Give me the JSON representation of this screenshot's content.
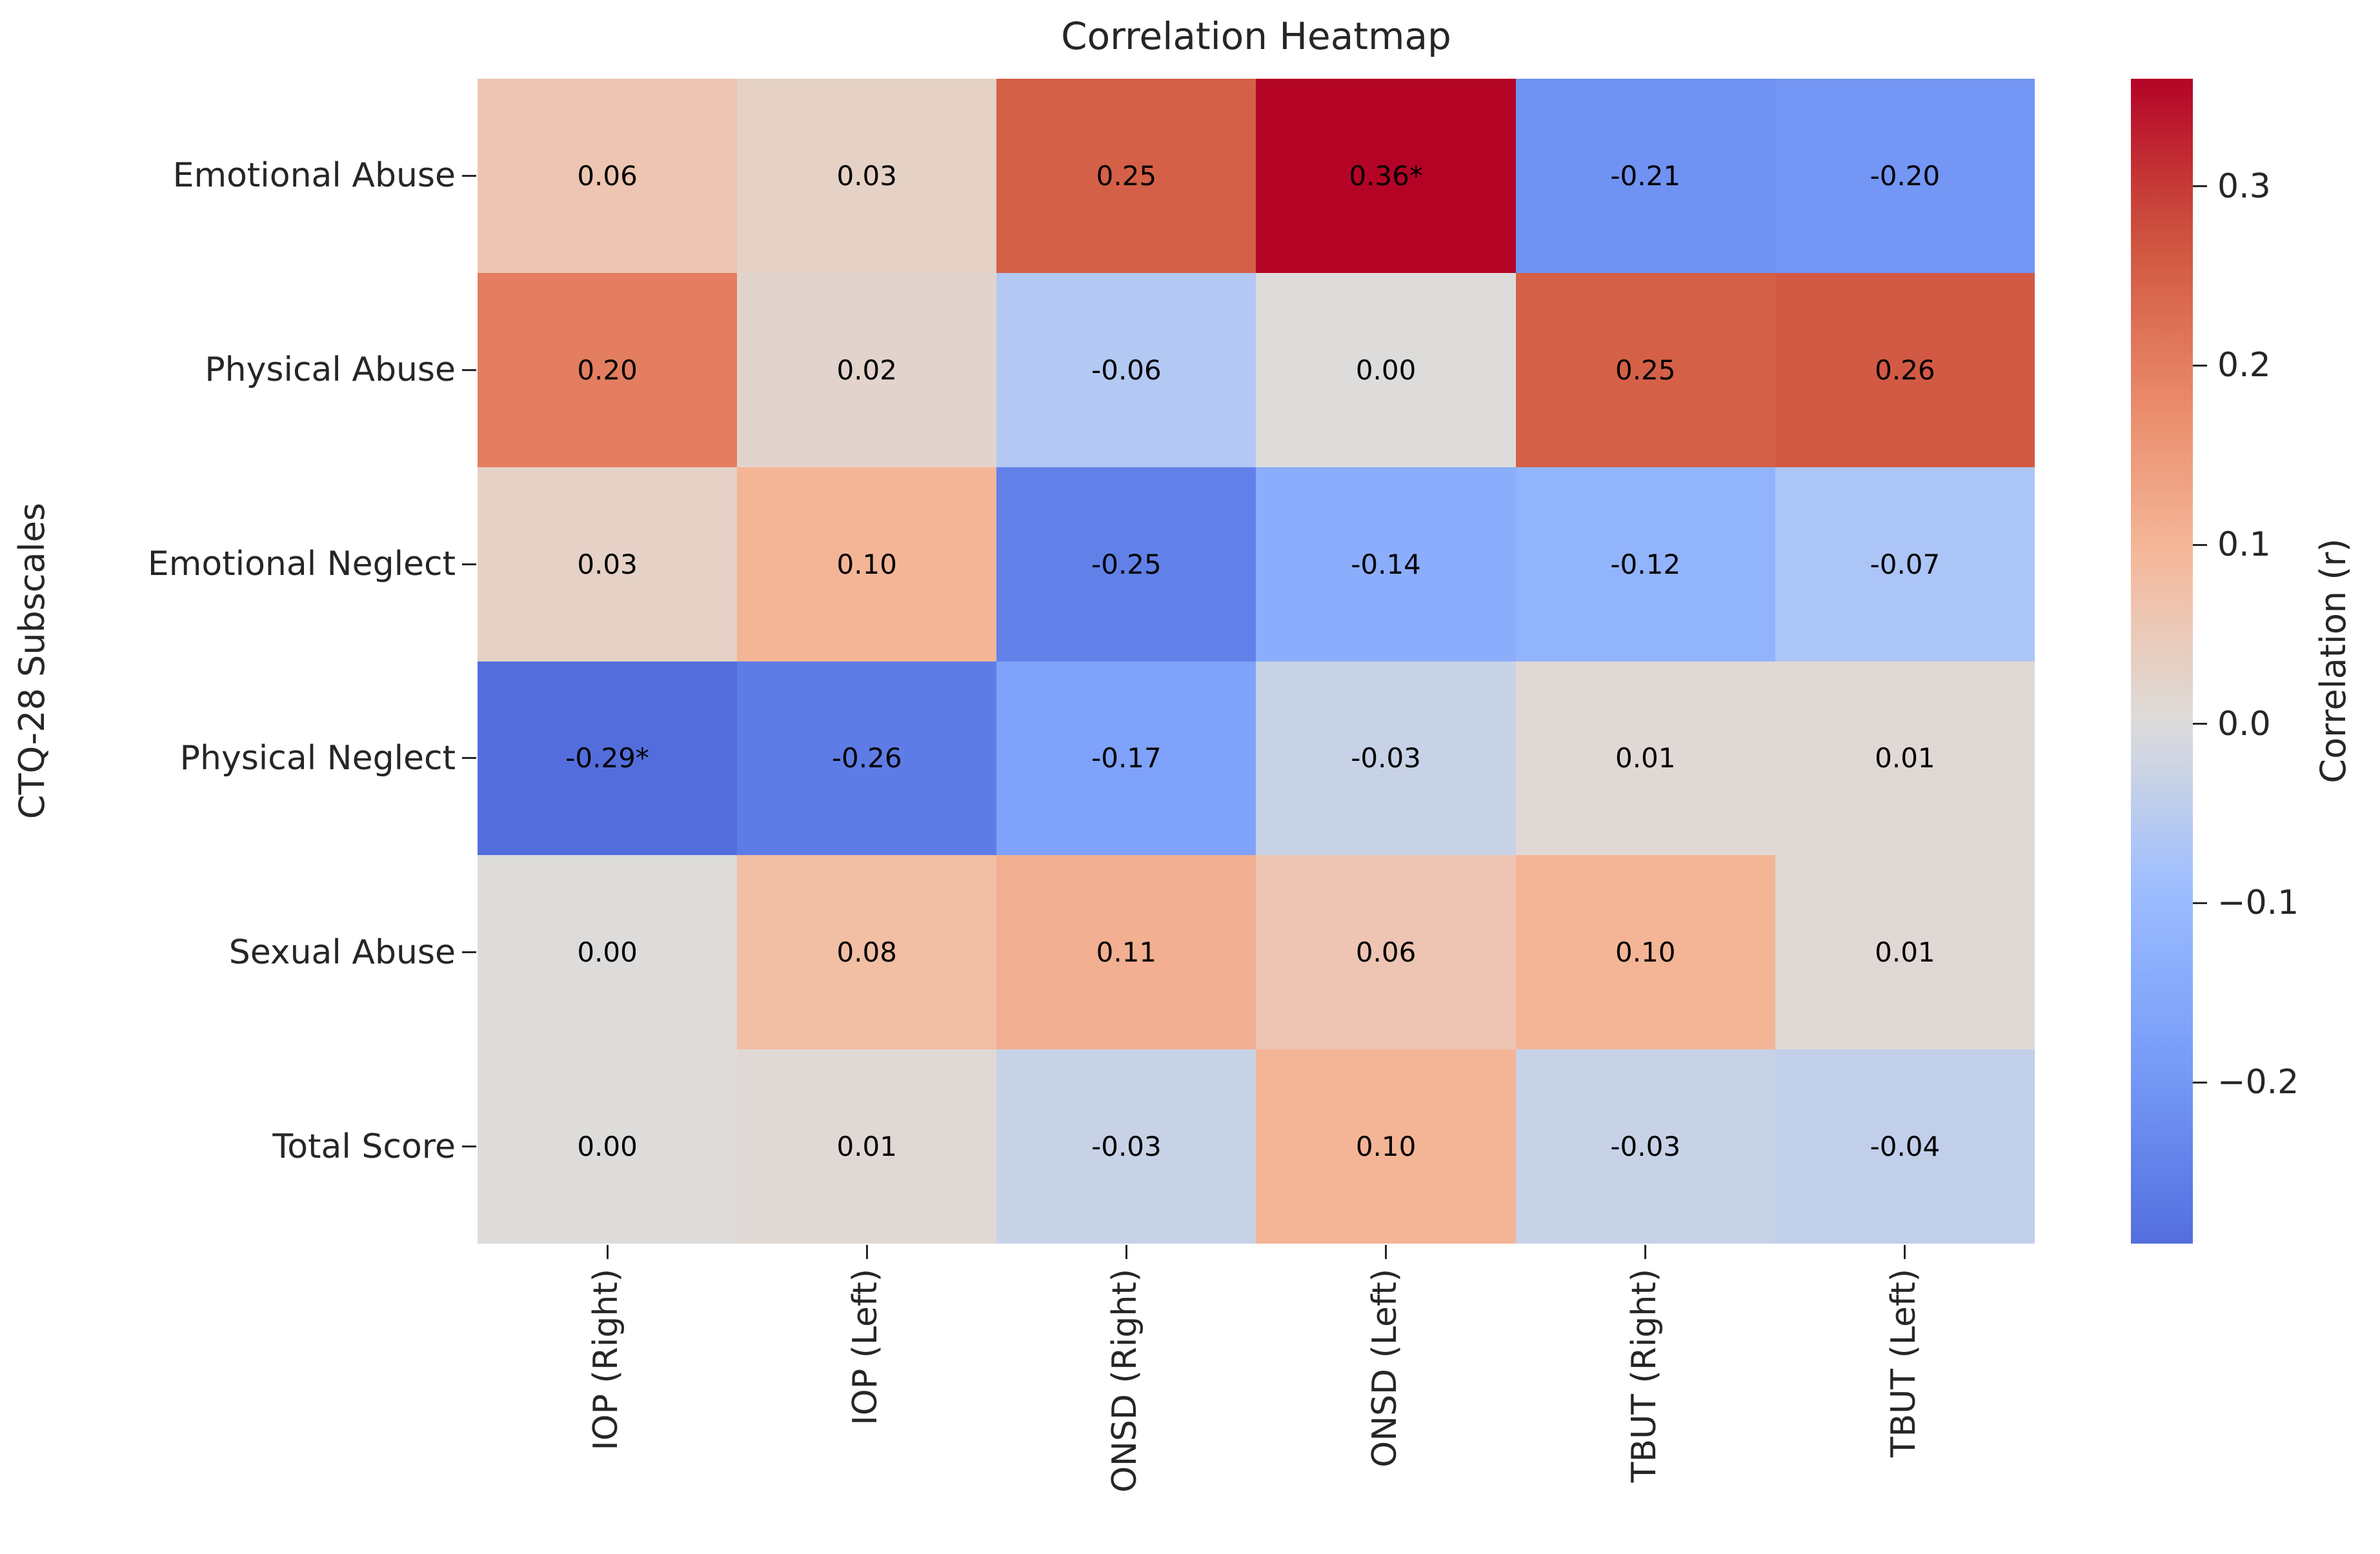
{
  "chart_data": {
    "type": "heatmap",
    "title": "Correlation Heatmap",
    "ylabel": "CTQ-28 Subscales",
    "xlabel": "",
    "colorbar_label": "Correlation (r)",
    "colormap": "coolwarm",
    "color_norm": {
      "vmin": -0.36,
      "vmax": 0.36,
      "center": 0
    },
    "colorbar_range": {
      "top": 0.36,
      "bottom": -0.29
    },
    "colorbar_ticks": [
      {
        "label": "0.3",
        "value": 0.3
      },
      {
        "label": "0.2",
        "value": 0.2
      },
      {
        "label": "0.1",
        "value": 0.1
      },
      {
        "label": "0.0",
        "value": 0.0
      },
      {
        "label": "−0.1",
        "value": -0.1
      },
      {
        "label": "−0.2",
        "value": -0.2
      }
    ],
    "columns": [
      "IOP (Right)",
      "IOP (Left)",
      "ONSD (Right)",
      "ONSD (Left)",
      "TBUT (Right)",
      "TBUT (Left)"
    ],
    "rows": [
      "Emotional Abuse",
      "Physical Abuse",
      "Emotional Neglect",
      "Physical Neglect",
      "Sexual Abuse",
      "Total Score"
    ],
    "cells": [
      [
        "0.06",
        "0.03",
        "0.25",
        "0.36*",
        "-0.21",
        "-0.20"
      ],
      [
        "0.20",
        "0.02",
        "-0.06",
        "0.00",
        "0.25",
        "0.26"
      ],
      [
        "0.03",
        "0.10",
        "-0.25",
        "-0.14",
        "-0.12",
        "-0.07"
      ],
      [
        "-0.29*",
        "-0.26",
        "-0.17",
        "-0.03",
        "0.01",
        "0.01"
      ],
      [
        "0.00",
        "0.08",
        "0.11",
        "0.06",
        "0.10",
        "0.01"
      ],
      [
        "0.00",
        "0.01",
        "-0.03",
        "0.10",
        "-0.03",
        "-0.04"
      ]
    ],
    "significance_note": "* markers appear directly in cell text",
    "legend_position": "right-colorbar",
    "grid": false
  },
  "colors": {
    "background": "#ffffff",
    "label_text": "#262626",
    "cell_text": "#000000",
    "coolwarm_min": "#3b4cc0",
    "coolwarm_mid": "#dddcdb",
    "coolwarm_max": "#b40426"
  }
}
